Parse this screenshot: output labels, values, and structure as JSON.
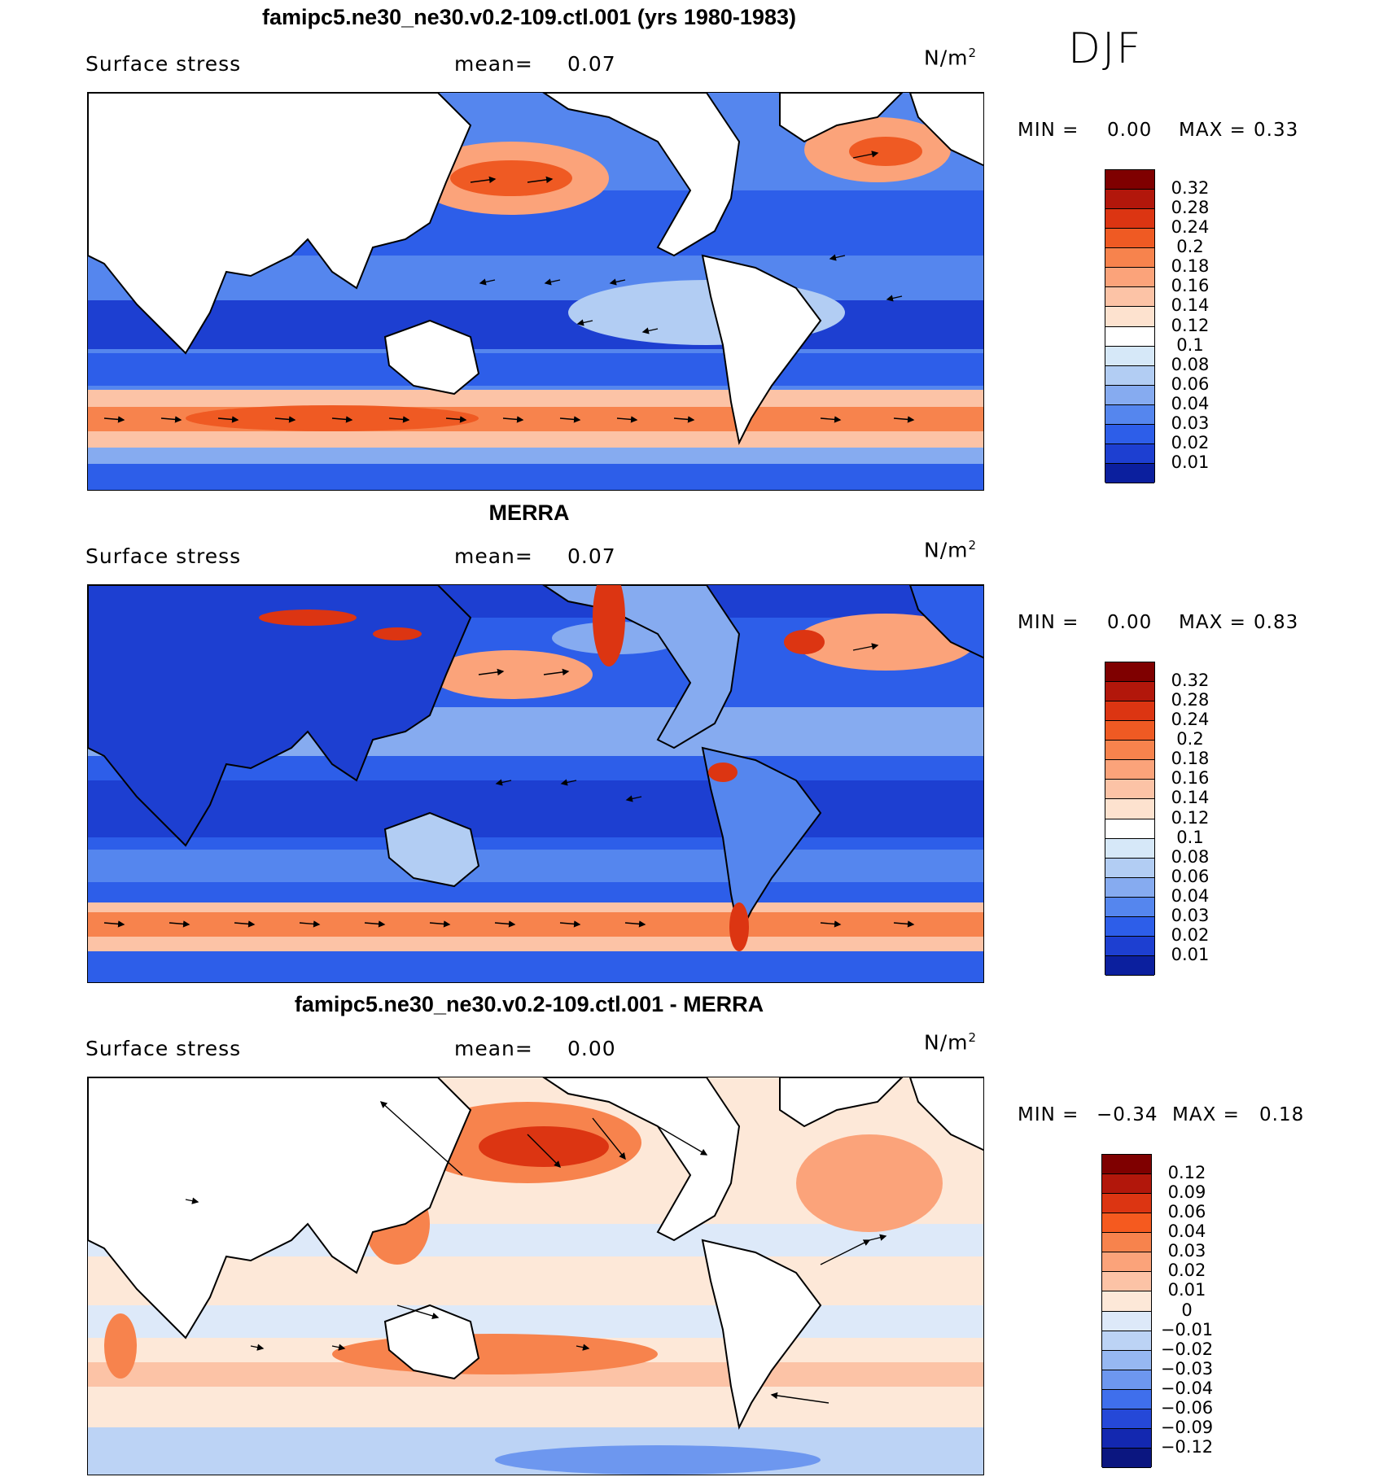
{
  "season": "DJF",
  "panels": [
    {
      "id": "model",
      "title": "famipc5.ne30_ne30.v0.2-109.ctl.001 (yrs 1980-1983)",
      "variable": "Surface stress",
      "mean_label": "mean=",
      "mean_value": "0.07",
      "units": "N/m",
      "units_exp": "2",
      "min_label": "MIN =",
      "min_value": "0.00",
      "max_label": "MAX =",
      "max_value": "0.33",
      "colorbar": {
        "ticks": [
          "0.32",
          "0.28",
          "0.24",
          "0.2",
          "0.18",
          "0.16",
          "0.14",
          "0.12",
          "0.1",
          "0.08",
          "0.06",
          "0.04",
          "0.03",
          "0.02",
          "0.01"
        ],
        "colors": [
          "#7f0000",
          "#b2170b",
          "#dc3512",
          "#ef5a23",
          "#f7834d",
          "#fba37a",
          "#fcc3a6",
          "#fde2cf",
          "#ffffff",
          "#d6e8f8",
          "#b2cdf3",
          "#86abf0",
          "#5586ee",
          "#2d5ee9",
          "#1d3fd1",
          "#0b1f9e"
        ]
      }
    },
    {
      "id": "obs",
      "title": "MERRA",
      "variable": "Surface stress",
      "mean_label": "mean=",
      "mean_value": "0.07",
      "units": "N/m",
      "units_exp": "2",
      "min_label": "MIN =",
      "min_value": "0.00",
      "max_label": "MAX =",
      "max_value": "0.83",
      "colorbar": {
        "ticks": [
          "0.32",
          "0.28",
          "0.24",
          "0.2",
          "0.18",
          "0.16",
          "0.14",
          "0.12",
          "0.1",
          "0.08",
          "0.06",
          "0.04",
          "0.03",
          "0.02",
          "0.01"
        ],
        "colors": [
          "#7f0000",
          "#b2170b",
          "#dc3512",
          "#ef5a23",
          "#f7834d",
          "#fba37a",
          "#fcc3a6",
          "#fde2cf",
          "#ffffff",
          "#d6e8f8",
          "#b2cdf3",
          "#86abf0",
          "#5586ee",
          "#2d5ee9",
          "#1d3fd1",
          "#0b1f9e"
        ]
      }
    },
    {
      "id": "diff",
      "title": "famipc5.ne30_ne30.v0.2-109.ctl.001 - MERRA",
      "variable": "Surface stress",
      "mean_label": "mean=",
      "mean_value": "0.00",
      "units": "N/m",
      "units_exp": "2",
      "min_label": "MIN =",
      "min_value": "−0.34",
      "max_label": "MAX =",
      "max_value": "0.18",
      "colorbar": {
        "ticks": [
          "0.12",
          "0.09",
          "0.06",
          "0.04",
          "0.03",
          "0.02",
          "0.01",
          "0",
          "−0.01",
          "−0.02",
          "−0.03",
          "−0.04",
          "−0.06",
          "−0.09",
          "−0.12"
        ],
        "colors": [
          "#7f0000",
          "#b2170b",
          "#dc3512",
          "#f55a1f",
          "#f7834d",
          "#fba37a",
          "#fcc3a6",
          "#fde8d8",
          "#dde9f9",
          "#bcd3f5",
          "#96b8f2",
          "#6d97ef",
          "#3f6fec",
          "#2548d8",
          "#1328b0",
          "#0b1680"
        ]
      }
    }
  ]
}
